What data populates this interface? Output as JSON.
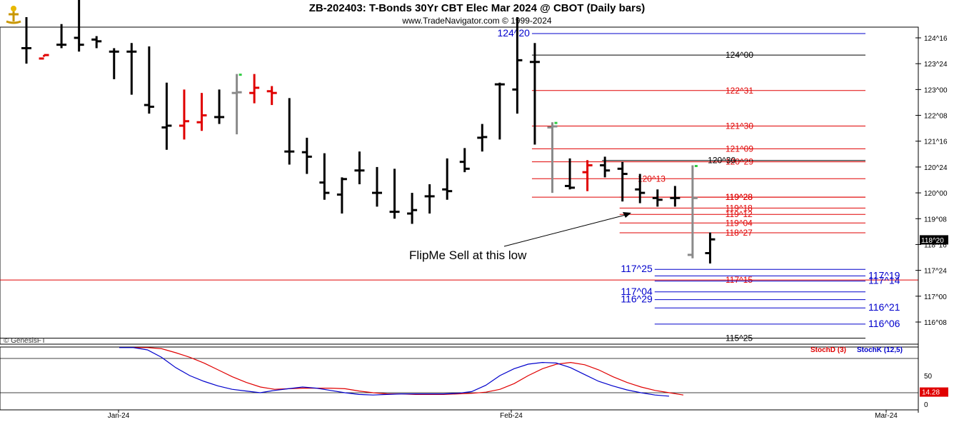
{
  "header": {
    "title": "ZB-202403:  T-Bonds 30Yr CBT Elec Mar 2024 @ CBOT  (Daily bars)",
    "subtitle": "www.TradeNavigator.com © 1999-2024"
  },
  "watermark": "© GenesisFT",
  "annotation": "FlipMe Sell at this low",
  "colors": {
    "bar_up": "#000000",
    "bar_red": "#e00000",
    "bar_gray": "#8a8a8a",
    "green_tick": "#2ecc40",
    "level_black": "#000000",
    "level_red": "#e00000",
    "level_blue": "#0000cc",
    "stoch_d": "#e00000",
    "stoch_k": "#0000cc"
  },
  "chart_data": [
    {
      "type": "ohlc",
      "name": "price",
      "y_axis_ticks": [
        "124^16",
        "123^24",
        "123^00",
        "122^08",
        "121^16",
        "120^24",
        "120^00",
        "119^08",
        "118^16",
        "117^24",
        "117^00",
        "116^08"
      ],
      "last_price_label": "118^20",
      "x_axis_ticks": [
        "Jan-24",
        "Feb-24",
        "Mar-24"
      ],
      "bars": [
        {
          "h": 125.1,
          "l": 123.75,
          "o": 124.2,
          "c": 124.2,
          "col": "k"
        },
        {
          "h": 124.0,
          "l": 123.95,
          "o": 123.9,
          "c": 124.0,
          "col": "r"
        },
        {
          "h": 124.9,
          "l": 124.2,
          "o": 124.3,
          "c": 124.3,
          "col": "k"
        },
        {
          "h": 125.7,
          "l": 124.1,
          "o": 124.5,
          "c": 124.3,
          "col": "k"
        },
        {
          "h": 124.55,
          "l": 124.2,
          "o": 124.45,
          "c": 124.4,
          "col": "k"
        },
        {
          "h": 124.2,
          "l": 123.3,
          "o": 124.1,
          "c": 124.1,
          "col": "k"
        },
        {
          "h": 124.35,
          "l": 122.85,
          "o": 124.1,
          "c": 124.1,
          "col": "k"
        },
        {
          "h": 124.25,
          "l": 122.3,
          "o": 122.55,
          "c": 122.5,
          "col": "k"
        },
        {
          "h": 123.2,
          "l": 121.25,
          "o": 121.9,
          "c": 121.95,
          "col": "k"
        },
        {
          "h": 123.0,
          "l": 121.55,
          "o": 121.95,
          "c": 122.08,
          "col": "r"
        },
        {
          "h": 122.9,
          "l": 121.8,
          "o": 122.05,
          "c": 122.25,
          "col": "r"
        },
        {
          "h": 123.0,
          "l": 122.0,
          "o": 122.2,
          "c": 122.2,
          "col": "k"
        },
        {
          "h": 123.45,
          "l": 121.7,
          "o": 122.9,
          "c": 122.92,
          "col": "g"
        },
        {
          "h": 123.45,
          "l": 122.6,
          "o": 122.9,
          "c": 123.05,
          "col": "r"
        },
        {
          "h": 123.1,
          "l": 122.55,
          "o": 122.95,
          "c": 122.9,
          "col": "r"
        },
        {
          "h": 122.75,
          "l": 120.82,
          "o": 121.2,
          "c": 121.2,
          "col": "k"
        },
        {
          "h": 121.6,
          "l": 120.55,
          "o": 121.18,
          "c": 121.05,
          "col": "k"
        },
        {
          "h": 121.15,
          "l": 119.8,
          "o": 120.3,
          "c": 120.0,
          "col": "k"
        },
        {
          "h": 120.45,
          "l": 119.4,
          "o": 119.95,
          "c": 120.4,
          "col": "k"
        },
        {
          "h": 121.2,
          "l": 120.25,
          "o": 120.65,
          "c": 120.65,
          "col": "k"
        },
        {
          "h": 120.75,
          "l": 119.6,
          "o": 120.0,
          "c": 120.0,
          "col": "k"
        },
        {
          "h": 120.7,
          "l": 119.25,
          "o": 119.45,
          "c": 119.45,
          "col": "k"
        },
        {
          "h": 120.0,
          "l": 119.1,
          "o": 119.4,
          "c": 119.5,
          "col": "k"
        },
        {
          "h": 120.25,
          "l": 119.4,
          "o": 119.9,
          "c": 119.9,
          "col": "k"
        },
        {
          "h": 121.0,
          "l": 119.8,
          "o": 120.1,
          "c": 120.05,
          "col": "k"
        },
        {
          "h": 121.3,
          "l": 120.6,
          "o": 120.9,
          "c": 120.7,
          "col": "k"
        },
        {
          "h": 122.0,
          "l": 121.2,
          "o": 121.6,
          "c": 121.62,
          "col": "k"
        },
        {
          "h": 123.2,
          "l": 121.55,
          "o": 123.15,
          "c": 123.15,
          "col": "k"
        },
        {
          "h": 125.1,
          "l": 122.3,
          "o": 123.0,
          "c": 123.85,
          "col": "k"
        },
        {
          "h": 124.35,
          "l": 121.4,
          "o": 123.8,
          "c": 123.8,
          "col": "k"
        },
        {
          "h": 122.05,
          "l": 120.0,
          "o": 121.9,
          "c": 121.93,
          "col": "g"
        },
        {
          "h": 121.0,
          "l": 120.1,
          "o": 120.2,
          "c": 120.15,
          "col": "k"
        },
        {
          "h": 120.95,
          "l": 120.05,
          "o": 120.6,
          "c": 120.8,
          "col": "r"
        },
        {
          "h": 121.05,
          "l": 120.45,
          "o": 120.8,
          "c": 120.65,
          "col": "k"
        },
        {
          "h": 120.9,
          "l": 119.75,
          "o": 120.7,
          "c": 120.55,
          "col": "k"
        },
        {
          "h": 120.55,
          "l": 119.7,
          "o": 120.1,
          "c": 120.0,
          "col": "k"
        },
        {
          "h": 120.1,
          "l": 119.6,
          "o": 119.85,
          "c": 119.8,
          "col": "k"
        },
        {
          "h": 120.2,
          "l": 119.6,
          "o": 119.85,
          "c": 119.85,
          "col": "k"
        },
        {
          "h": 120.8,
          "l": 118.1,
          "o": 118.2,
          "c": 119.85,
          "col": "g"
        },
        {
          "h": 118.85,
          "l": 117.95,
          "o": 118.25,
          "c": 118.65,
          "col": "k"
        }
      ],
      "levels": [
        {
          "label": "124^20",
          "value": 124.625,
          "color": "blue",
          "x_from": "bar 29",
          "label_side": "left"
        },
        {
          "label": "124^00",
          "value": 124.0,
          "color": "black",
          "x_from": "bar 29",
          "label_side": "right"
        },
        {
          "label": "122^31",
          "value": 122.97,
          "color": "red",
          "x_from": "bar 29",
          "label_side": "right"
        },
        {
          "label": "121^30",
          "value": 121.94,
          "color": "red",
          "x_from": "bar 29",
          "label_side": "right"
        },
        {
          "label": "121^09",
          "value": 121.28,
          "color": "red",
          "x_from": "bar 29",
          "label_side": "right"
        },
        {
          "label": "120^29",
          "value": 120.9,
          "color": "red",
          "x_from": "bar 29",
          "label_side": "right"
        },
        {
          "label": "120^30",
          "value": 120.94,
          "color": "black",
          "x_from": "bar 33",
          "label_side": "mid"
        },
        {
          "label": "120^13",
          "value": 120.41,
          "color": "red",
          "x_from": "bar 29",
          "label_side": "mid"
        },
        {
          "label": "119^28",
          "value": 119.875,
          "color": "red",
          "x_from": "bar 29",
          "label_side": "right"
        },
        {
          "label": "119^28",
          "value": 119.875,
          "color": "red",
          "x_from": "bar 34",
          "label_side": "mid"
        },
        {
          "label": "119^18",
          "value": 119.56,
          "color": "red",
          "x_from": "bar 34",
          "label_side": "mid"
        },
        {
          "label": "119^12",
          "value": 119.375,
          "color": "red",
          "x_from": "bar 34",
          "label_side": "mid"
        },
        {
          "label": "119^04",
          "value": 119.125,
          "color": "red",
          "x_from": "bar 34",
          "label_side": "mid"
        },
        {
          "label": "118^27",
          "value": 118.84,
          "color": "red",
          "x_from": "bar 34",
          "label_side": "mid"
        },
        {
          "label": "117^25",
          "value": 117.78,
          "color": "blue",
          "x_from": "bar 36",
          "label_side": "left"
        },
        {
          "label": "117^19",
          "value": 117.59,
          "color": "blue",
          "x_from": "bar 36",
          "label_side": "far"
        },
        {
          "label": "117^15",
          "value": 117.47,
          "color": "red",
          "x_from": "start",
          "label_side": "mid"
        },
        {
          "label": "117^14",
          "value": 117.44,
          "color": "blue",
          "x_from": "bar 36",
          "label_side": "far"
        },
        {
          "label": "117^04",
          "value": 117.125,
          "color": "blue",
          "x_from": "bar 36",
          "label_side": "left"
        },
        {
          "label": "116^29",
          "value": 116.9,
          "color": "blue",
          "x_from": "bar 36",
          "label_side": "left"
        },
        {
          "label": "116^21",
          "value": 116.66,
          "color": "blue",
          "x_from": "bar 36",
          "label_side": "far"
        },
        {
          "label": "116^06",
          "value": 116.19,
          "color": "blue",
          "x_from": "bar 36",
          "label_side": "far"
        },
        {
          "label": "115^25",
          "value": 115.78,
          "color": "black",
          "x_from": "start",
          "label_side": "right"
        }
      ]
    },
    {
      "type": "line",
      "name": "stochastic",
      "y_axis_ticks": [
        "50",
        "0"
      ],
      "reference_lines": [
        80,
        20
      ],
      "last_value_label": "14.28",
      "series": [
        {
          "name": "StochD (3)",
          "color": "red",
          "values": [
            99,
            99,
            97,
            90,
            82,
            72,
            60,
            48,
            38,
            30,
            26,
            27,
            28,
            28,
            28,
            27,
            23,
            20,
            18,
            18,
            17,
            17,
            17,
            18,
            19,
            21,
            26,
            36,
            50,
            62,
            70,
            73,
            69,
            60,
            48,
            38,
            30,
            24,
            20,
            16
          ]
        },
        {
          "name": "StochK (12,5)",
          "color": "blue",
          "values": [
            99,
            99,
            95,
            82,
            64,
            50,
            40,
            32,
            26,
            23,
            20,
            24,
            27,
            30,
            28,
            24,
            20,
            17,
            16,
            17,
            18,
            18,
            18,
            18,
            19,
            22,
            33,
            50,
            62,
            70,
            73,
            72,
            64,
            52,
            40,
            32,
            25,
            20,
            16,
            14
          ]
        }
      ]
    }
  ]
}
